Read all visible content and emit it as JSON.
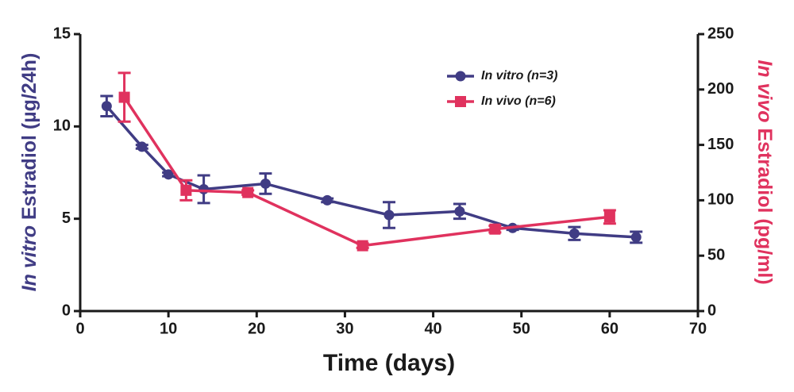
{
  "chart_data": {
    "type": "line",
    "xlabel": "Time (days)",
    "ylabel": [
      "In vitro",
      " Estradiol (µg/24h)"
    ],
    "y2label": [
      "In vivo",
      " Estradiol (pg/ml)"
    ],
    "xlim": [
      0,
      70
    ],
    "xticks": [
      0,
      10,
      20,
      30,
      40,
      50,
      60,
      70
    ],
    "ylim": [
      0,
      15
    ],
    "yticks": [
      0,
      5,
      10,
      15
    ],
    "y2lim": [
      0,
      250
    ],
    "y2ticks": [
      0,
      50,
      100,
      150,
      200,
      250
    ],
    "legend": "upper right",
    "series": [
      {
        "name": "In vitro (n=3)",
        "color": "#403c84",
        "marker": "circle",
        "x": [
          3,
          7,
          10,
          14,
          21,
          28,
          35,
          43,
          49,
          56,
          63
        ],
        "values": [
          11.1,
          8.9,
          7.4,
          6.6,
          6.9,
          6.0,
          5.2,
          5.4,
          4.5,
          4.2,
          4.0
        ],
        "errors": [
          0.55,
          0.1,
          0.1,
          0.75,
          0.55,
          0.1,
          0.7,
          0.4,
          0.1,
          0.35,
          0.3
        ]
      },
      {
        "name": "In vivo (n=6)",
        "color": "#e0325e",
        "marker": "square",
        "axis": "y2",
        "x": [
          5,
          12,
          19,
          32,
          47,
          60
        ],
        "values": [
          193,
          109,
          107,
          59,
          74,
          85
        ],
        "errors": [
          22,
          9,
          2,
          2,
          3,
          6
        ]
      }
    ]
  }
}
